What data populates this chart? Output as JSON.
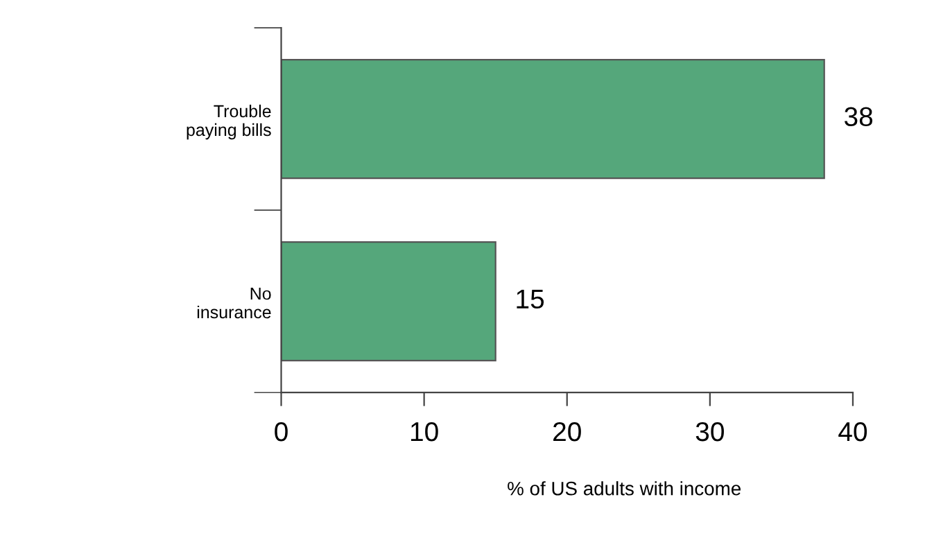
{
  "chart_data": {
    "type": "bar",
    "orientation": "horizontal",
    "categories": [
      "Trouble\npaying bills",
      "No\ninsurance"
    ],
    "values": [
      38,
      15
    ],
    "color": "#55a77b",
    "xlim": [
      0,
      40
    ],
    "xticks": [
      0,
      10,
      20,
      30,
      40
    ],
    "xlabel": "% of US adults with income",
    "data_labels": true,
    "grid": false,
    "legend": false
  }
}
